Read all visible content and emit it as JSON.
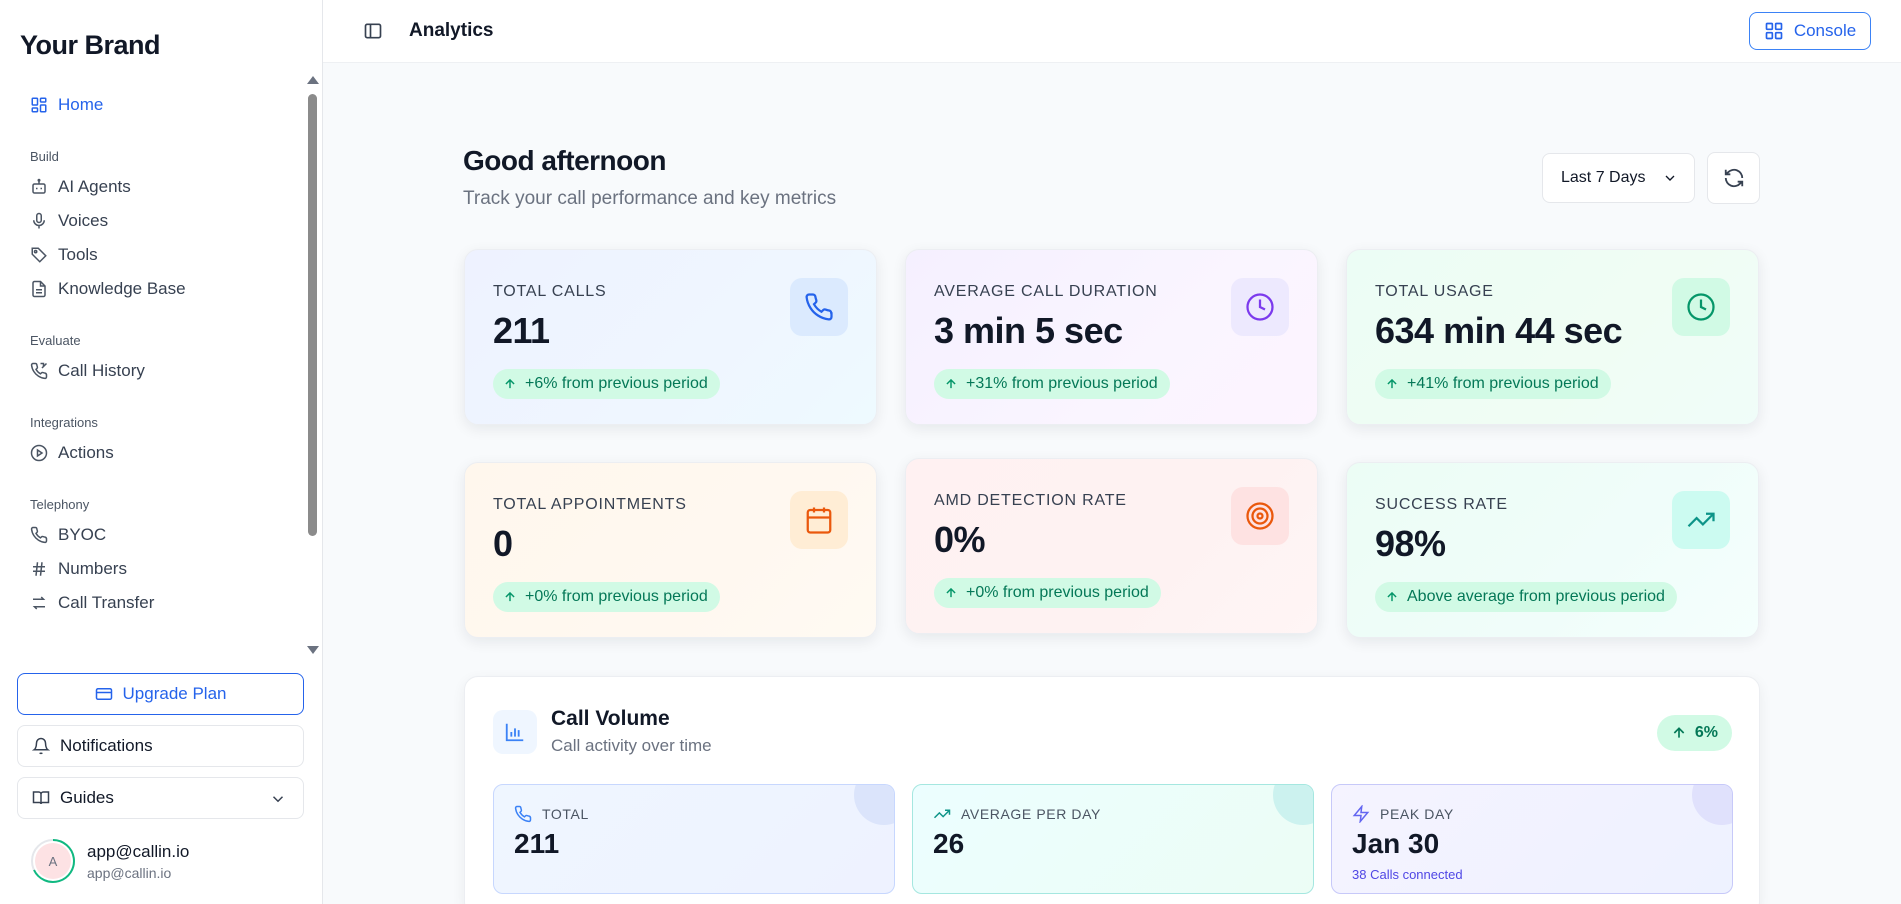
{
  "brand": "Your Brand",
  "sidebar": {
    "items": [
      {
        "label": "Home"
      },
      {
        "section": "Build"
      },
      {
        "label": "AI Agents"
      },
      {
        "label": "Voices"
      },
      {
        "label": "Tools"
      },
      {
        "label": "Knowledge Base"
      },
      {
        "section": "Evaluate"
      },
      {
        "label": "Call History"
      },
      {
        "section": "Integrations"
      },
      {
        "label": "Actions"
      },
      {
        "section": "Telephony"
      },
      {
        "label": "BYOC"
      },
      {
        "label": "Numbers"
      },
      {
        "label": "Call Transfer"
      }
    ],
    "upgrade_label": "Upgrade Plan",
    "notifications_label": "Notifications",
    "guides_label": "Guides",
    "user": {
      "initial": "A",
      "name": "app@callin.io",
      "email": "app@callin.io"
    }
  },
  "header": {
    "title": "Analytics",
    "console_label": "Console"
  },
  "main": {
    "greeting": "Good afternoon",
    "subtitle": "Track your call performance and key metrics",
    "range": "Last 7 Days",
    "cards": [
      {
        "label": "TOTAL CALLS",
        "value": "211",
        "badge": "+6% from previous period",
        "icon": "phone-icon"
      },
      {
        "label": "AVERAGE CALL DURATION",
        "value": "3 min 5 sec",
        "badge": "+31% from previous period",
        "icon": "clock-icon"
      },
      {
        "label": "TOTAL USAGE",
        "value": "634 min 44 sec",
        "badge": "+41% from previous period",
        "icon": "clock-icon"
      },
      {
        "label": "TOTAL APPOINTMENTS",
        "value": "0",
        "badge": "+0% from previous period",
        "icon": "calendar-icon"
      },
      {
        "label": "AMD DETECTION RATE",
        "value": "0%",
        "badge": "+0% from previous period",
        "icon": "target-icon"
      },
      {
        "label": "SUCCESS RATE",
        "value": "98%",
        "badge": "Above average from previous period",
        "icon": "trending-up-icon"
      }
    ],
    "volume": {
      "title": "Call Volume",
      "subtitle": "Call activity over time",
      "badge": "6%",
      "stats": [
        {
          "label": "TOTAL",
          "value": "211"
        },
        {
          "label": "AVERAGE PER DAY",
          "value": "26"
        },
        {
          "label": "PEAK DAY",
          "value": "Jan 30",
          "note": "38 Calls connected"
        }
      ]
    }
  },
  "colors": {
    "accent": "#2563eb",
    "success": "#047857",
    "success_bg": "#d1fae5"
  }
}
